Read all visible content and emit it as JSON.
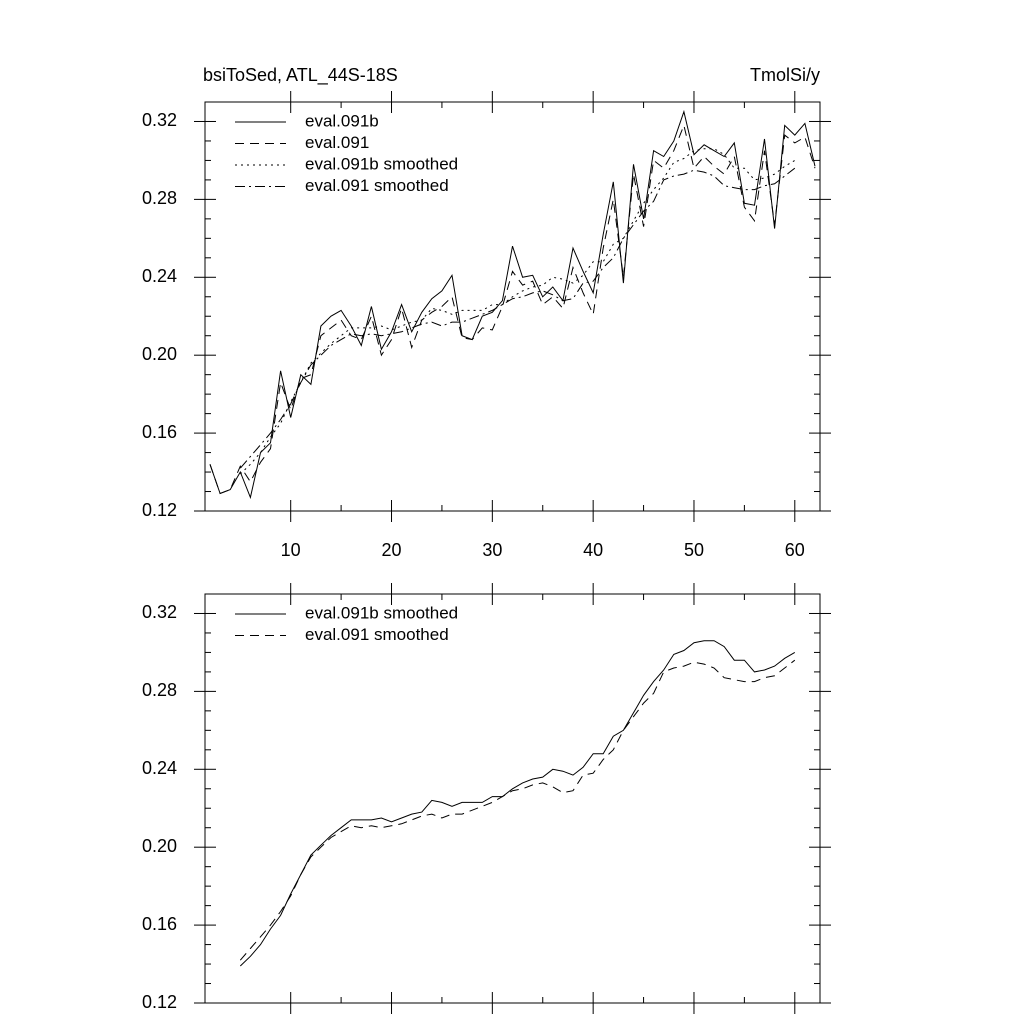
{
  "chart_data": [
    {
      "type": "line",
      "title": "bsiToSed, ATL_44S-18S",
      "subtitle": "TmolSi/y",
      "x": [
        2,
        3,
        4,
        5,
        6,
        7,
        8,
        9,
        10,
        11,
        12,
        13,
        14,
        15,
        16,
        17,
        18,
        19,
        20,
        21,
        22,
        23,
        24,
        25,
        26,
        27,
        28,
        29,
        30,
        31,
        32,
        33,
        34,
        35,
        36,
        37,
        38,
        39,
        40,
        41,
        42,
        43,
        44,
        45,
        46,
        47,
        48,
        49,
        50,
        51,
        52,
        53,
        54,
        55,
        56,
        57,
        58,
        59,
        60,
        61,
        62
      ],
      "xlim": [
        1.5,
        62.5
      ],
      "xticks": [
        10,
        20,
        30,
        40,
        50,
        60
      ],
      "ylim": [
        0.12,
        0.33
      ],
      "yticks": [
        0.12,
        0.16,
        {
          "value": 0.2,
          "label": "0.20"
        },
        0.24,
        0.28,
        0.32
      ],
      "series": [
        {
          "name": "eval.091b",
          "color": "#000000",
          "dash": "solid",
          "values": [
            0.144,
            0.129,
            0.131,
            0.14,
            0.127,
            0.15,
            0.155,
            0.192,
            0.168,
            0.19,
            0.185,
            0.215,
            0.22,
            0.223,
            0.215,
            0.205,
            0.225,
            0.203,
            0.212,
            0.226,
            0.212,
            0.222,
            0.229,
            0.233,
            0.241,
            0.21,
            0.208,
            0.22,
            0.222,
            0.228,
            0.256,
            0.24,
            0.241,
            0.23,
            0.235,
            0.228,
            0.255,
            0.243,
            0.232,
            0.262,
            0.289,
            0.237,
            0.298,
            0.27,
            0.305,
            0.302,
            0.31,
            0.325,
            0.303,
            0.308,
            0.305,
            0.302,
            0.309,
            0.278,
            0.277,
            0.311,
            0.265,
            0.318,
            0.313,
            0.319,
            0.297
          ]
        },
        {
          "name": "eval.091",
          "color": "#000000",
          "dash": "dashed",
          "values": [
            0.144,
            0.129,
            0.131,
            0.143,
            0.135,
            0.145,
            0.152,
            0.186,
            0.172,
            0.188,
            0.19,
            0.21,
            0.214,
            0.218,
            0.21,
            0.208,
            0.22,
            0.2,
            0.208,
            0.224,
            0.204,
            0.218,
            0.222,
            0.225,
            0.23,
            0.209,
            0.208,
            0.214,
            0.213,
            0.225,
            0.243,
            0.236,
            0.238,
            0.226,
            0.23,
            0.224,
            0.245,
            0.232,
            0.221,
            0.255,
            0.28,
            0.24,
            0.293,
            0.266,
            0.3,
            0.296,
            0.305,
            0.318,
            0.296,
            0.302,
            0.297,
            0.293,
            0.302,
            0.276,
            0.269,
            0.305,
            0.267,
            0.313,
            0.309,
            0.312,
            0.296
          ]
        },
        {
          "name": "eval.091b smoothed",
          "color": "#000000",
          "dash": "dotted",
          "values": [
            null,
            null,
            null,
            0.139,
            0.144,
            0.15,
            0.158,
            0.165,
            0.176,
            0.186,
            0.196,
            0.201,
            0.206,
            0.21,
            0.214,
            0.214,
            0.214,
            0.215,
            0.213,
            0.215,
            0.217,
            0.218,
            0.224,
            0.223,
            0.221,
            0.223,
            0.223,
            0.223,
            0.226,
            0.226,
            0.23,
            0.233,
            0.235,
            0.236,
            0.24,
            0.239,
            0.237,
            0.241,
            0.248,
            0.248,
            0.257,
            0.26,
            0.269,
            0.278,
            0.285,
            0.291,
            0.299,
            0.301,
            0.305,
            0.306,
            0.306,
            0.303,
            0.296,
            0.296,
            0.29,
            0.291,
            0.293,
            0.297,
            0.3,
            null,
            null
          ]
        },
        {
          "name": "eval.091 smoothed",
          "color": "#000000",
          "dash": "dashdot",
          "values": [
            null,
            null,
            null,
            0.142,
            0.148,
            0.154,
            0.16,
            0.167,
            0.175,
            0.186,
            0.195,
            0.2,
            0.205,
            0.208,
            0.211,
            0.21,
            0.211,
            0.21,
            0.211,
            0.212,
            0.214,
            0.216,
            0.217,
            0.215,
            0.217,
            0.217,
            0.219,
            0.221,
            0.223,
            0.226,
            0.229,
            0.23,
            0.232,
            0.233,
            0.231,
            0.228,
            0.229,
            0.237,
            0.238,
            0.245,
            0.25,
            0.26,
            0.267,
            0.274,
            0.279,
            0.29,
            0.292,
            0.293,
            0.295,
            0.294,
            0.292,
            0.287,
            0.286,
            0.285,
            0.285,
            0.287,
            0.288,
            0.292,
            0.296,
            null,
            null
          ]
        }
      ]
    },
    {
      "type": "line",
      "x": [
        2,
        3,
        4,
        5,
        6,
        7,
        8,
        9,
        10,
        11,
        12,
        13,
        14,
        15,
        16,
        17,
        18,
        19,
        20,
        21,
        22,
        23,
        24,
        25,
        26,
        27,
        28,
        29,
        30,
        31,
        32,
        33,
        34,
        35,
        36,
        37,
        38,
        39,
        40,
        41,
        42,
        43,
        44,
        45,
        46,
        47,
        48,
        49,
        50,
        51,
        52,
        53,
        54,
        55,
        56,
        57,
        58,
        59,
        60,
        61,
        62
      ],
      "xlim": [
        1.5,
        62.5
      ],
      "xticks": [
        10,
        20,
        30,
        40,
        50,
        60
      ],
      "ylim": [
        0.12,
        0.33
      ],
      "yticks": [
        0.12,
        0.16,
        {
          "value": 0.2,
          "label": "0.20"
        },
        0.24,
        0.28,
        0.32
      ],
      "series": [
        {
          "name": "eval.091b smoothed",
          "color": "#000000",
          "dash": "solid",
          "values": [
            null,
            null,
            null,
            0.139,
            0.144,
            0.15,
            0.158,
            0.165,
            0.176,
            0.186,
            0.196,
            0.201,
            0.206,
            0.21,
            0.214,
            0.214,
            0.214,
            0.215,
            0.213,
            0.215,
            0.217,
            0.218,
            0.224,
            0.223,
            0.221,
            0.223,
            0.223,
            0.223,
            0.226,
            0.226,
            0.23,
            0.233,
            0.235,
            0.236,
            0.24,
            0.239,
            0.237,
            0.241,
            0.248,
            0.248,
            0.257,
            0.26,
            0.269,
            0.278,
            0.285,
            0.291,
            0.299,
            0.301,
            0.305,
            0.306,
            0.306,
            0.303,
            0.296,
            0.296,
            0.29,
            0.291,
            0.293,
            0.297,
            0.3,
            null,
            null
          ]
        },
        {
          "name": "eval.091 smoothed",
          "color": "#000000",
          "dash": "dashed",
          "values": [
            null,
            null,
            null,
            0.142,
            0.148,
            0.154,
            0.16,
            0.167,
            0.175,
            0.186,
            0.195,
            0.2,
            0.205,
            0.208,
            0.211,
            0.21,
            0.211,
            0.21,
            0.211,
            0.212,
            0.214,
            0.216,
            0.217,
            0.215,
            0.217,
            0.217,
            0.219,
            0.221,
            0.223,
            0.226,
            0.229,
            0.23,
            0.232,
            0.233,
            0.231,
            0.228,
            0.229,
            0.237,
            0.238,
            0.245,
            0.25,
            0.26,
            0.267,
            0.274,
            0.279,
            0.29,
            0.292,
            0.293,
            0.295,
            0.294,
            0.292,
            0.287,
            0.286,
            0.285,
            0.285,
            0.287,
            0.288,
            0.292,
            0.296,
            null,
            null
          ]
        }
      ]
    }
  ]
}
